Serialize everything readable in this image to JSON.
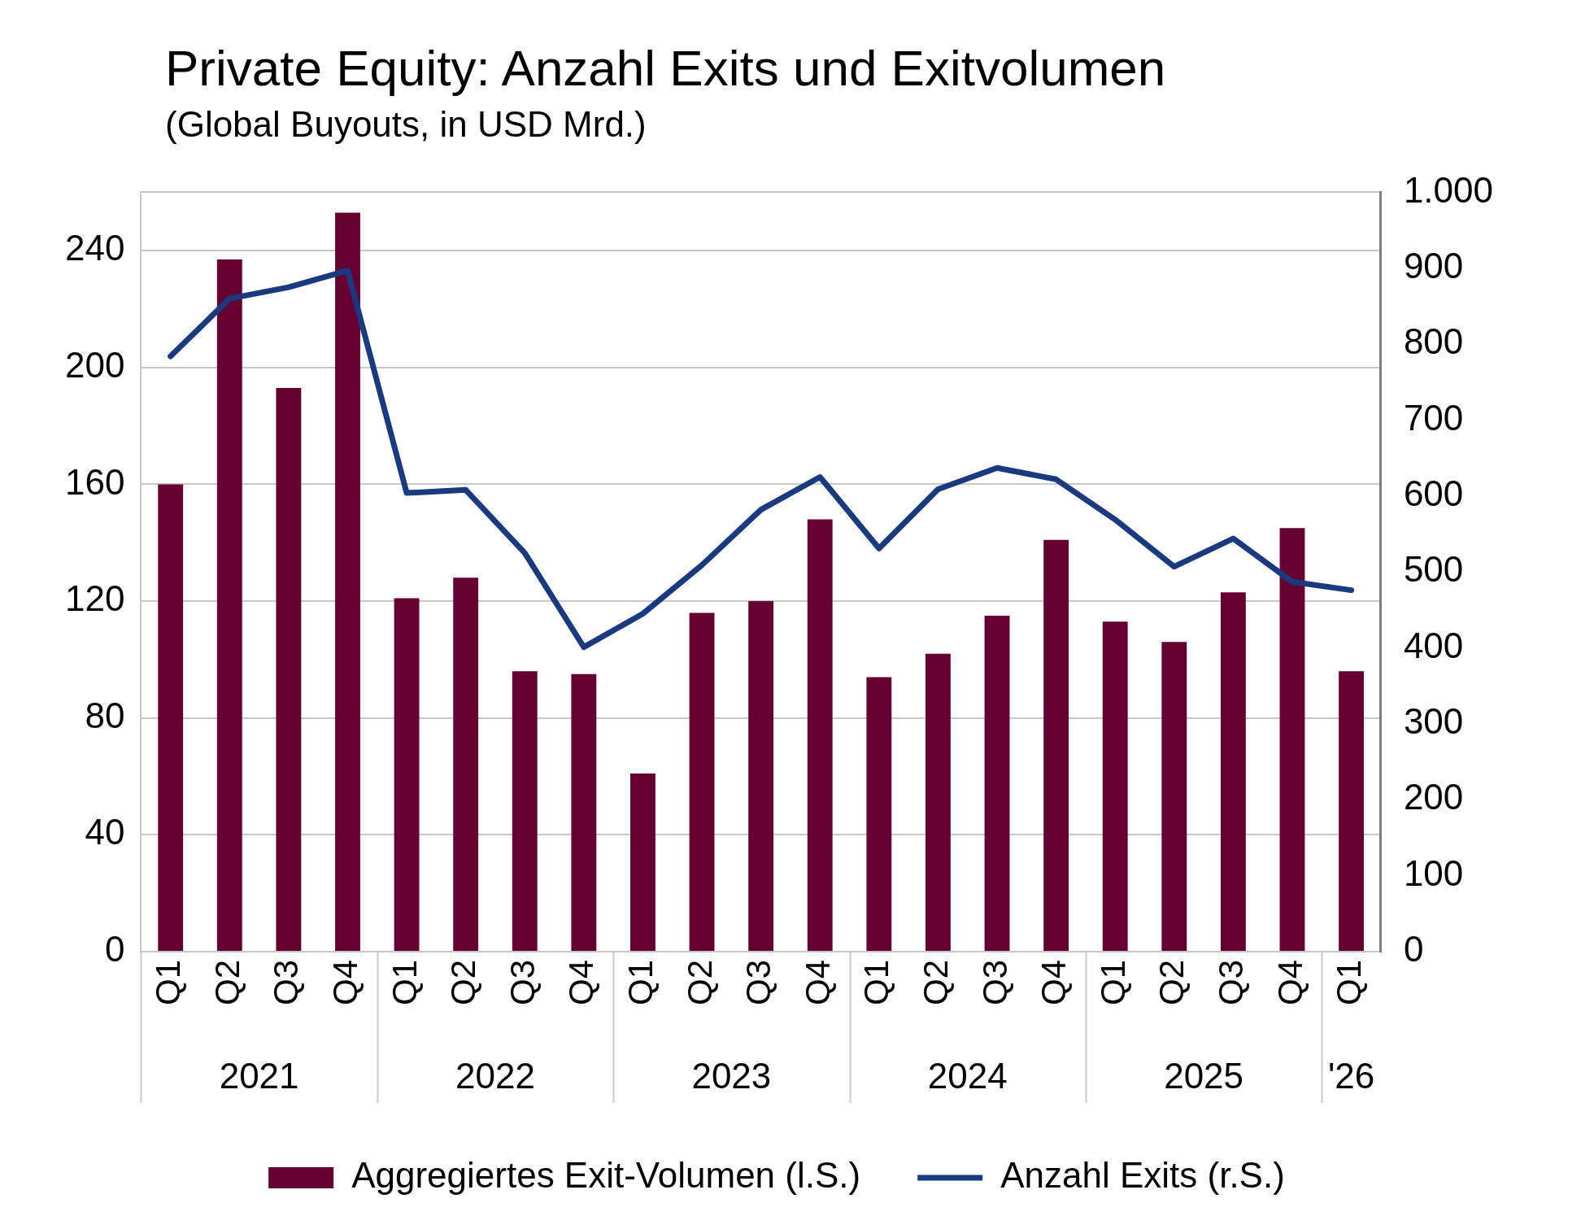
{
  "chart_data": {
    "type": "bar",
    "title": "Private Equity: Anzahl Exits und Exitvolumen",
    "subtitle": "(Global Buyouts, in USD Mrd.)",
    "categories": [
      "Q1",
      "Q2",
      "Q3",
      "Q4",
      "Q1",
      "Q2",
      "Q3",
      "Q4",
      "Q1",
      "Q2",
      "Q3",
      "Q4",
      "Q1",
      "Q2",
      "Q3",
      "Q4",
      "Q1",
      "Q2",
      "Q3",
      "Q4",
      "Q1"
    ],
    "annotations": [
      "2021",
      "2022",
      "2023",
      "2024",
      "2025",
      "'26"
    ],
    "series": [
      {
        "name": "Aggregiertes Exit-Volumen (l.S.)",
        "color": "#660030",
        "values": [
          160,
          237,
          193,
          253,
          121,
          128,
          96,
          95,
          61,
          116,
          120,
          148,
          94,
          102,
          115,
          141,
          113,
          106,
          123,
          145,
          96
        ]
      },
      {
        "name": "Anzahl Exits (r.S.)",
        "type": "line",
        "axis": "y2",
        "color": "#1a3a80",
        "values": [
          784,
          860,
          875,
          897,
          604,
          608,
          525,
          401,
          445,
          509,
          582,
          625,
          531,
          609,
          637,
          622,
          569,
          507,
          544,
          487,
          476
        ]
      }
    ],
    "ylim": [
      0,
      260
    ],
    "yticks": [
      0,
      40,
      80,
      120,
      160,
      200,
      240,
      {
        "value": 260,
        "label": null
      }
    ],
    "y2lim": [
      0,
      1000
    ],
    "y2ticks": [
      0,
      100,
      200,
      300,
      400,
      500,
      600,
      700,
      800,
      900,
      {
        "value": 1000,
        "label": "1.000"
      }
    ],
    "grid": "y",
    "legend": "bottom"
  }
}
